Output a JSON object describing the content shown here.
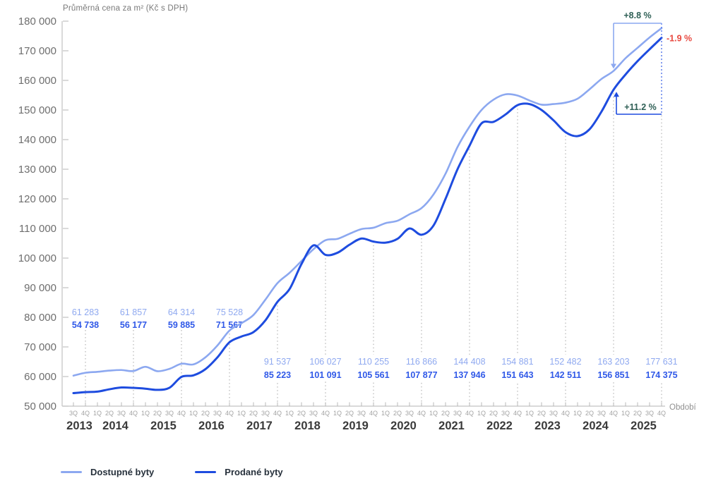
{
  "chart_data": {
    "type": "line",
    "title": "Průměrná cena za m² (Kč s DPH)",
    "xlabel": "Období",
    "ylim": [
      50000,
      180000
    ],
    "ytick_step": 10000,
    "grid": false,
    "legend_position": "bottom-left",
    "x_quarters": [
      "3Q",
      "4Q",
      "1Q",
      "2Q",
      "3Q",
      "4Q",
      "1Q",
      "2Q",
      "3Q",
      "4Q",
      "1Q",
      "2Q",
      "3Q",
      "4Q",
      "1Q",
      "2Q",
      "3Q",
      "4Q",
      "1Q",
      "2Q",
      "3Q",
      "4Q",
      "1Q",
      "2Q",
      "3Q",
      "4Q",
      "1Q",
      "2Q",
      "3Q",
      "4Q",
      "1Q",
      "2Q",
      "3Q",
      "4Q",
      "1Q",
      "2Q",
      "3Q",
      "4Q",
      "1Q",
      "2Q",
      "3Q",
      "4Q",
      "1Q",
      "2Q",
      "3Q",
      "4Q",
      "1Q",
      "2Q",
      "3Q",
      "4Q"
    ],
    "x_years": [
      {
        "label": "2013",
        "from": 0,
        "to": 1
      },
      {
        "label": "2014",
        "from": 2,
        "to": 5
      },
      {
        "label": "2015",
        "from": 6,
        "to": 9
      },
      {
        "label": "2016",
        "from": 10,
        "to": 13
      },
      {
        "label": "2017",
        "from": 14,
        "to": 17
      },
      {
        "label": "2018",
        "from": 18,
        "to": 21
      },
      {
        "label": "2019",
        "from": 22,
        "to": 25
      },
      {
        "label": "2020",
        "from": 26,
        "to": 29
      },
      {
        "label": "2021",
        "from": 30,
        "to": 33
      },
      {
        "label": "2022",
        "from": 34,
        "to": 37
      },
      {
        "label": "2023",
        "from": 38,
        "to": 41
      },
      {
        "label": "2024",
        "from": 42,
        "to": 45
      },
      {
        "label": "2025",
        "from": 46,
        "to": 49
      }
    ],
    "series": [
      {
        "name": "Dostupné byty",
        "color": "#8CA8F0",
        "label_color": "#8FA9F0",
        "values": [
          60300,
          61283,
          61600,
          62000,
          62200,
          61857,
          63300,
          61800,
          62600,
          64314,
          64100,
          66500,
          70500,
          75528,
          78000,
          80800,
          86000,
          91537,
          95000,
          99000,
          103000,
          106027,
          106500,
          108200,
          109800,
          110255,
          111800,
          112600,
          114800,
          116866,
          121500,
          128500,
          137500,
          144408,
          150000,
          153500,
          155300,
          154881,
          153200,
          151800,
          152000,
          152482,
          153800,
          157000,
          160500,
          163203,
          167500,
          171000,
          174500,
          177631
        ]
      },
      {
        "name": "Prodané byty",
        "color": "#1E4CDF",
        "label_color": "#3059E8",
        "values": [
          54400,
          54738,
          54900,
          55700,
          56300,
          56177,
          55900,
          55500,
          56200,
          59885,
          60400,
          62500,
          66500,
          71567,
          73500,
          75000,
          79000,
          85223,
          89500,
          98000,
          104300,
          101091,
          101800,
          104500,
          106600,
          105561,
          105200,
          106500,
          110000,
          107877,
          111000,
          120000,
          130000,
          137946,
          145500,
          146000,
          148500,
          151643,
          152000,
          150000,
          146500,
          142511,
          141200,
          143500,
          149500,
          156851,
          162000,
          166500,
          170500,
          174375
        ]
      }
    ],
    "year_end_labels": [
      {
        "quarter_index": 1,
        "year": "2013",
        "available": 61283,
        "sold": 54738,
        "band": "upper"
      },
      {
        "quarter_index": 5,
        "year": "2014",
        "available": 61857,
        "sold": 56177,
        "band": "upper"
      },
      {
        "quarter_index": 9,
        "year": "2015",
        "available": 64314,
        "sold": 59885,
        "band": "upper"
      },
      {
        "quarter_index": 13,
        "year": "2016",
        "available": 75528,
        "sold": 71567,
        "band": "upper"
      },
      {
        "quarter_index": 17,
        "year": "2017",
        "available": 91537,
        "sold": 85223,
        "band": "lower"
      },
      {
        "quarter_index": 21,
        "year": "2018",
        "available": 106027,
        "sold": 101091,
        "band": "lower"
      },
      {
        "quarter_index": 25,
        "year": "2019",
        "available": 110255,
        "sold": 105561,
        "band": "lower"
      },
      {
        "quarter_index": 29,
        "year": "2020",
        "available": 116866,
        "sold": 107877,
        "band": "lower"
      },
      {
        "quarter_index": 33,
        "year": "2021",
        "available": 144408,
        "sold": 137946,
        "band": "lower"
      },
      {
        "quarter_index": 37,
        "year": "2022",
        "available": 154881,
        "sold": 151643,
        "band": "lower"
      },
      {
        "quarter_index": 41,
        "year": "2023",
        "available": 152482,
        "sold": 142511,
        "band": "lower"
      },
      {
        "quarter_index": 45,
        "year": "2024",
        "available": 163203,
        "sold": 156851,
        "band": "lower"
      },
      {
        "quarter_index": 49,
        "year": "2025",
        "available": 177631,
        "sold": 174375,
        "band": "lower"
      }
    ],
    "annotations": [
      {
        "name": "available-yoy-growth",
        "text": "+8.8 %",
        "series": "available",
        "from": 45,
        "to": 49,
        "color": "#2E5F55",
        "placement": "above"
      },
      {
        "name": "sold-yoy-growth",
        "text": "+11.2 %",
        "series": "sold",
        "from": 45,
        "to": 49,
        "color": "#2E5F55",
        "placement": "below"
      },
      {
        "name": "available-sold-gap",
        "text": "-1.9 %",
        "series": "sold",
        "at": 49,
        "color": "#E8483F",
        "placement": "right"
      }
    ],
    "colors": {
      "axis": "#C2C2C2",
      "tick": "#B8B8B8",
      "y_label": "#6E6E6E",
      "quarter_label": "#A3A3A3",
      "year_label": "#3A3A3A",
      "title": "#7A7A7A",
      "xlabel": "#909090",
      "dotted_guide": "#B5B5B5",
      "dashed_blue": "#4A6FEE"
    }
  }
}
